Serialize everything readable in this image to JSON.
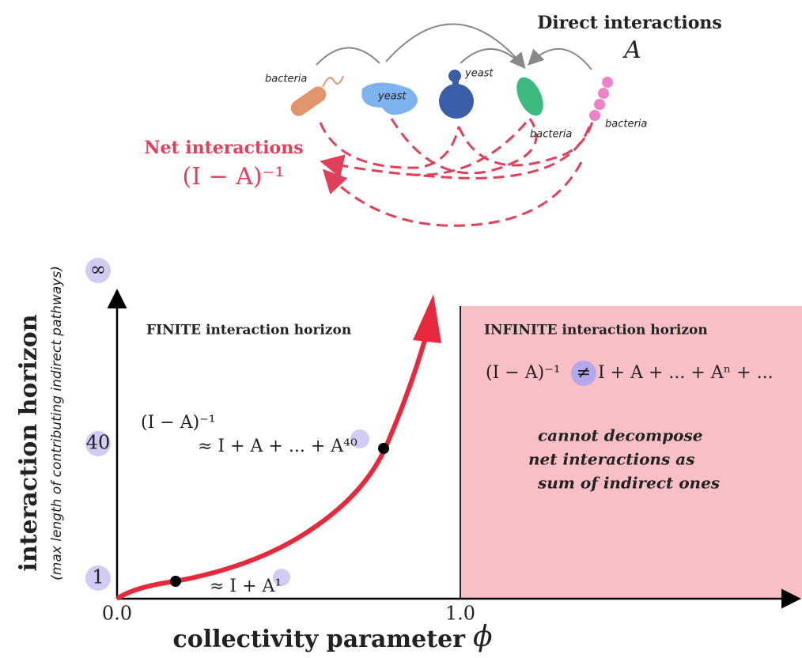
{
  "organisms": [
    "bacteria",
    "yeast",
    "yeast",
    "bacteria",
    "bacteria"
  ],
  "direct": {
    "title": "Direct interactions",
    "symbol": "A"
  },
  "net": {
    "title": "Net interactions",
    "formula": "(I − A)⁻¹"
  },
  "y_axis": {
    "title": "interaction horizon",
    "subtitle": "(max length of contributing indirect pathways)",
    "ticks": [
      "∞",
      "40",
      "1"
    ]
  },
  "x_axis": {
    "title": "collectivity parameter",
    "symbol": "ϕ",
    "ticks": [
      "0.0",
      "1.0"
    ]
  },
  "finite": {
    "title": "FINITE interaction horizon",
    "formula_top": "(I − A)⁻¹",
    "formula_bottom": "≈ I + A + ... + A⁴⁰",
    "formula_low": "≈ I + A¹"
  },
  "infinite": {
    "title": "INFINITE interaction horizon",
    "formula_left": "(I − A)⁻¹",
    "formula_neq": "≠",
    "formula_right": "I + A + ... + Aⁿ + ...",
    "note": [
      "cannot decompose",
      "net interactions as",
      "sum of indirect ones"
    ]
  }
}
